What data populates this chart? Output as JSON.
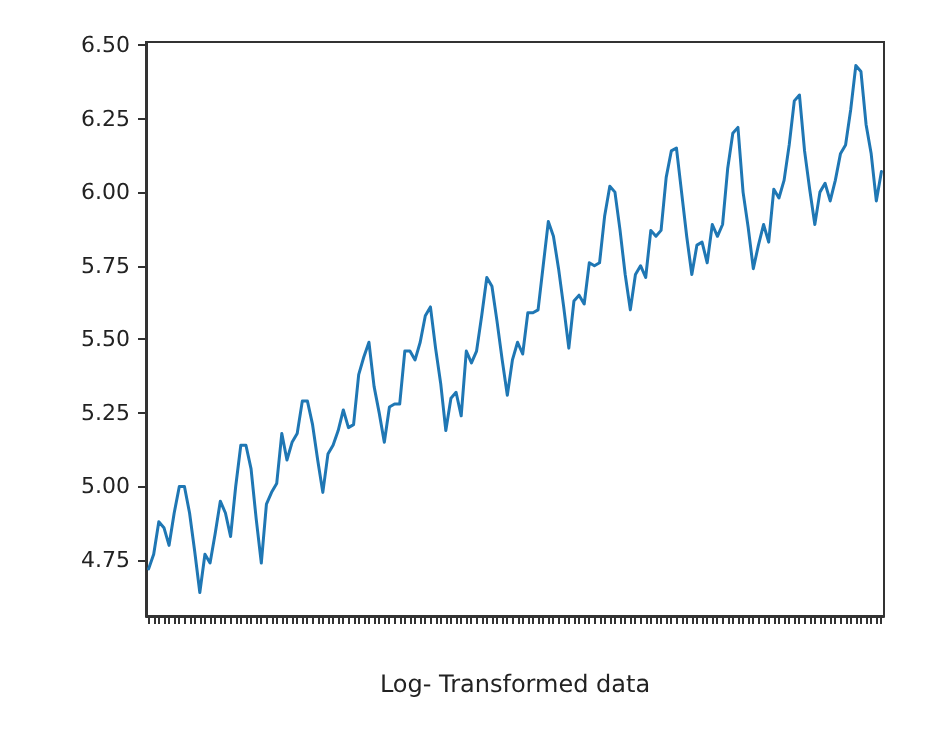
{
  "chart_data": {
    "type": "line",
    "xlabel": "Log- Transformed data",
    "categories": [
      null,
      null,
      null,
      null,
      null,
      null,
      null,
      null,
      null,
      null,
      null,
      null,
      null,
      null,
      null,
      null,
      null,
      null,
      null,
      null,
      null,
      null,
      null,
      null,
      null,
      null,
      null,
      null,
      null,
      null,
      null,
      null,
      null,
      null,
      null,
      null,
      null,
      null,
      null,
      null,
      null,
      null,
      null,
      null,
      null,
      null,
      null,
      null,
      null,
      null,
      null,
      null,
      null,
      null,
      null,
      null,
      null,
      null,
      null,
      null,
      null,
      null,
      null,
      null,
      null,
      null,
      null,
      null,
      null,
      null,
      null,
      null,
      null,
      null,
      null,
      null,
      null,
      null,
      null,
      null,
      null,
      null,
      null,
      null,
      null,
      null,
      null,
      null,
      null,
      null,
      null,
      null,
      null,
      null,
      null,
      null,
      null,
      null,
      null,
      null,
      null,
      null,
      null,
      null,
      null,
      null,
      null,
      null,
      null,
      null,
      null,
      null,
      null,
      null,
      null,
      null,
      null,
      null,
      null,
      null,
      null,
      null,
      null,
      null,
      null,
      null,
      null,
      null,
      null,
      null,
      null,
      null,
      null,
      null,
      null,
      null,
      null,
      null,
      null,
      null,
      null,
      null,
      null,
      null
    ],
    "series": [
      {
        "color": "#1f77b4",
        "values": [
          4.72,
          4.77,
          4.88,
          4.86,
          4.8,
          4.91,
          5.0,
          5.0,
          4.91,
          4.78,
          4.64,
          4.77,
          4.74,
          4.84,
          4.95,
          4.91,
          4.83,
          5.0,
          5.14,
          5.14,
          5.06,
          4.89,
          4.74,
          4.94,
          4.98,
          5.01,
          5.18,
          5.09,
          5.15,
          5.18,
          5.29,
          5.29,
          5.21,
          5.09,
          4.98,
          5.11,
          5.14,
          5.19,
          5.26,
          5.2,
          5.21,
          5.38,
          5.44,
          5.49,
          5.34,
          5.25,
          5.15,
          5.27,
          5.28,
          5.28,
          5.46,
          5.46,
          5.43,
          5.49,
          5.58,
          5.61,
          5.47,
          5.35,
          5.19,
          5.3,
          5.32,
          5.24,
          5.46,
          5.42,
          5.46,
          5.58,
          5.71,
          5.68,
          5.56,
          5.43,
          5.31,
          5.43,
          5.49,
          5.45,
          5.59,
          5.59,
          5.6,
          5.75,
          5.9,
          5.85,
          5.74,
          5.61,
          5.47,
          5.63,
          5.65,
          5.62,
          5.76,
          5.75,
          5.76,
          5.92,
          6.02,
          6.0,
          5.87,
          5.72,
          5.6,
          5.72,
          5.75,
          5.71,
          5.87,
          5.85,
          5.87,
          6.05,
          6.14,
          6.15,
          6.0,
          5.85,
          5.72,
          5.82,
          5.83,
          5.76,
          5.89,
          5.85,
          5.89,
          6.08,
          6.2,
          6.22,
          6.0,
          5.88,
          5.74,
          5.82,
          5.89,
          5.83,
          6.01,
          5.98,
          6.04,
          6.16,
          6.31,
          6.33,
          6.14,
          6.01,
          5.89,
          6.0,
          6.03,
          5.97,
          6.04,
          6.13,
          6.16,
          6.28,
          6.43,
          6.41,
          6.23,
          6.13,
          5.97,
          6.07
        ]
      }
    ],
    "ylim": [
      4.56,
      6.51
    ],
    "yticks": [
      4.75,
      {
        "value": 5,
        "label": "5.00"
      },
      5.25,
      {
        "value": 5.5,
        "label": "5.50"
      },
      5.75,
      {
        "value": 6,
        "label": "6.00"
      },
      6.25,
      {
        "value": 6.5,
        "label": "6.50"
      }
    ],
    "tick_labels": "y",
    "grid": false,
    "line_style": "solid"
  }
}
